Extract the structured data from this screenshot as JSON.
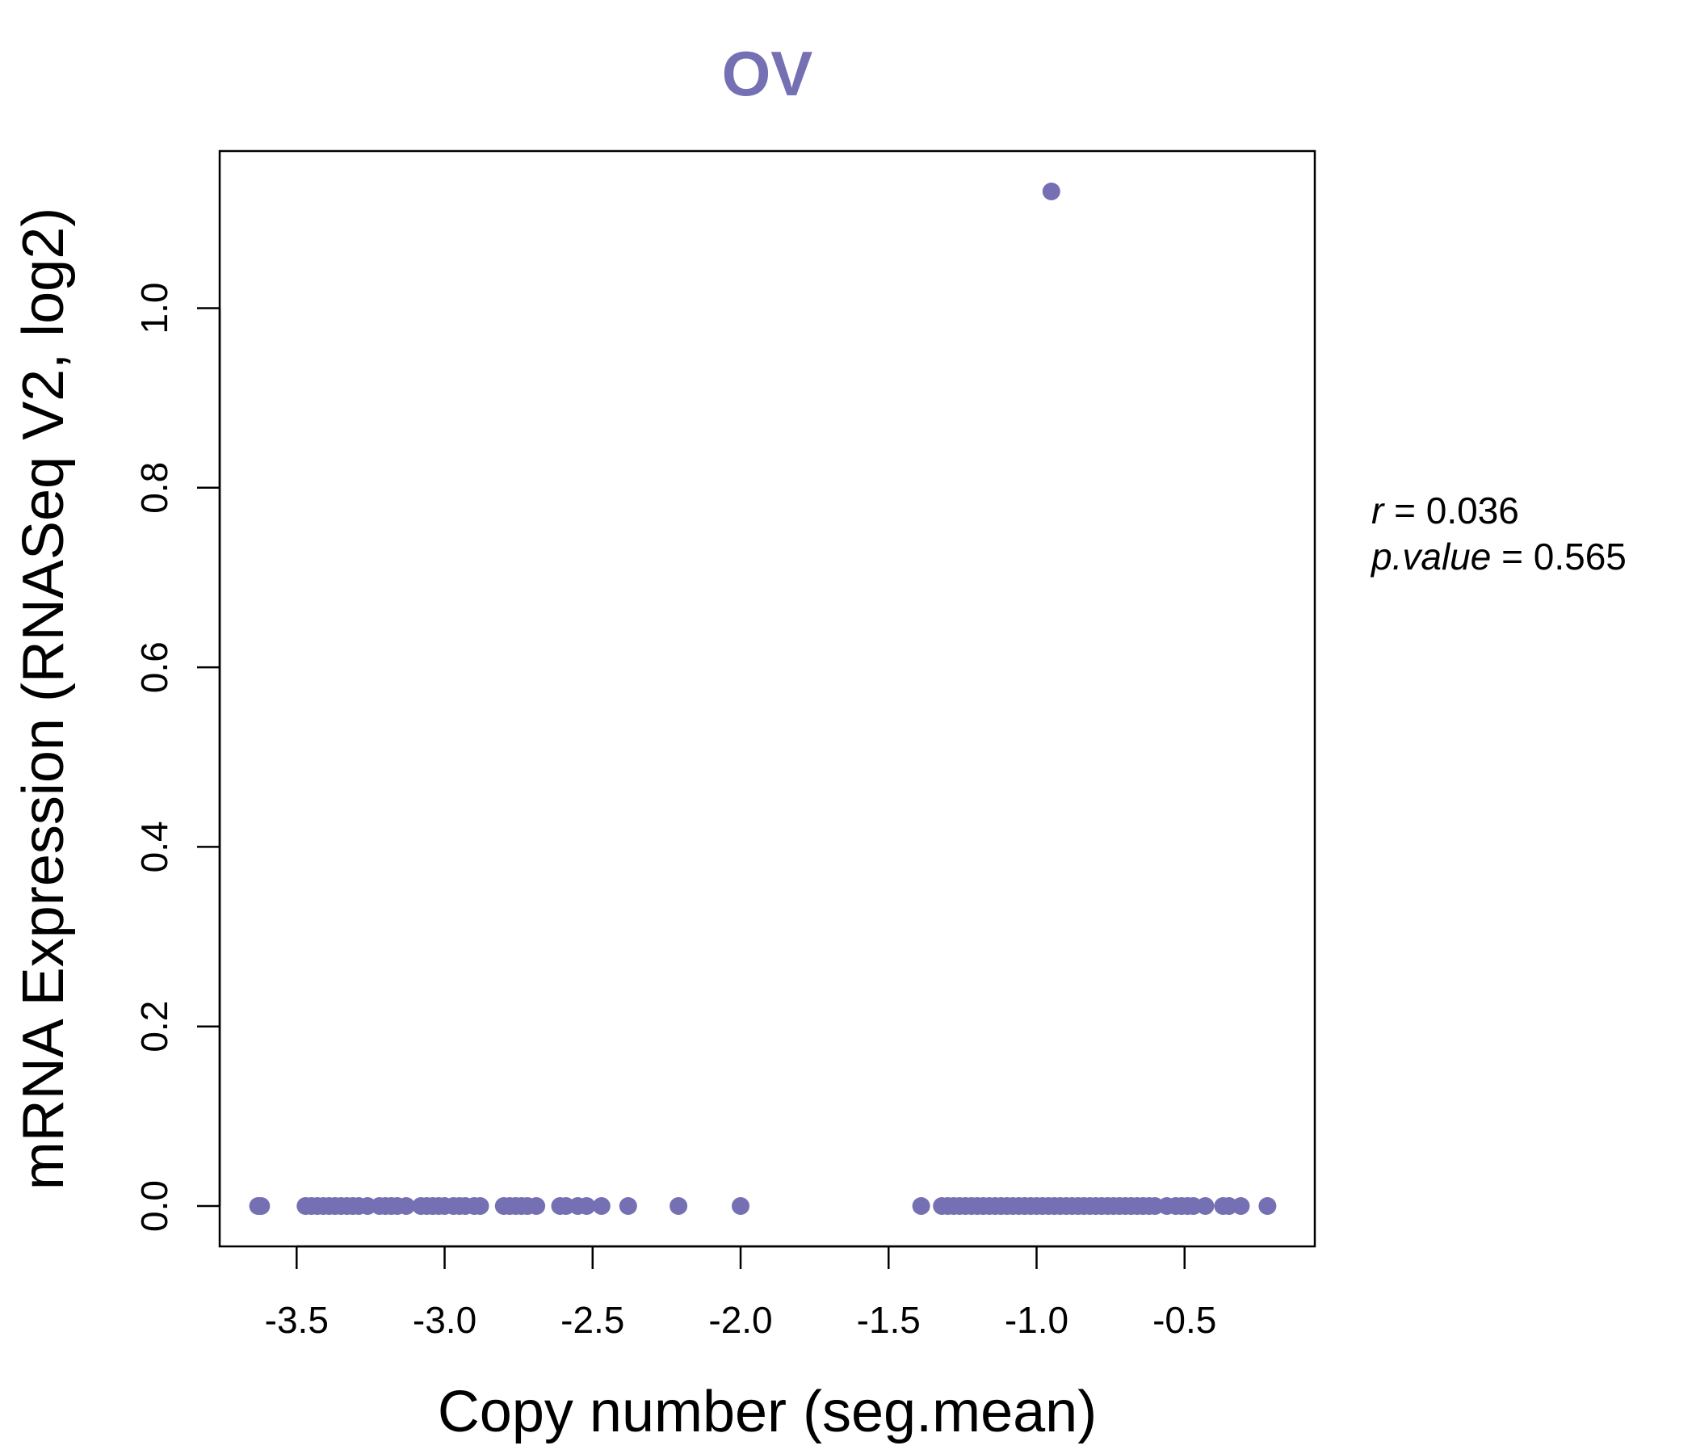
{
  "chart_data": {
    "type": "scatter",
    "title": "OV",
    "xlabel": "Copy number (seg.mean)",
    "ylabel": "mRNA Expression (RNASeq V2, log2)",
    "xlim": [
      -3.76,
      -0.06
    ],
    "ylim": [
      -0.045,
      1.175
    ],
    "x_ticks": [
      -3.5,
      -3.0,
      -2.5,
      -2.0,
      -1.5,
      -1.0,
      -0.5
    ],
    "x_tick_labels": [
      "-3.5",
      "-3.0",
      "-2.5",
      "-2.0",
      "-1.5",
      "-1.0",
      "-0.5"
    ],
    "y_ticks": [
      0.0,
      0.2,
      0.4,
      0.6,
      0.8,
      1.0
    ],
    "y_tick_labels": [
      "0.0",
      "0.2",
      "0.4",
      "0.6",
      "0.8",
      "1.0"
    ],
    "grid": false,
    "point_color": "#7570b3",
    "stats": {
      "r_label": "r",
      "r_value": "0.036",
      "p_label": "p.value",
      "p_value": "0.565"
    },
    "points": [
      {
        "x": -3.63,
        "y": 0
      },
      {
        "x": -3.62,
        "y": 0
      },
      {
        "x": -3.47,
        "y": 0
      },
      {
        "x": -3.45,
        "y": 0
      },
      {
        "x": -3.43,
        "y": 0
      },
      {
        "x": -3.41,
        "y": 0
      },
      {
        "x": -3.39,
        "y": 0
      },
      {
        "x": -3.37,
        "y": 0
      },
      {
        "x": -3.35,
        "y": 0
      },
      {
        "x": -3.33,
        "y": 0
      },
      {
        "x": -3.31,
        "y": 0
      },
      {
        "x": -3.29,
        "y": 0
      },
      {
        "x": -3.26,
        "y": 0
      },
      {
        "x": -3.22,
        "y": 0
      },
      {
        "x": -3.2,
        "y": 0
      },
      {
        "x": -3.18,
        "y": 0
      },
      {
        "x": -3.16,
        "y": 0
      },
      {
        "x": -3.13,
        "y": 0
      },
      {
        "x": -3.08,
        "y": 0
      },
      {
        "x": -3.06,
        "y": 0
      },
      {
        "x": -3.04,
        "y": 0
      },
      {
        "x": -3.02,
        "y": 0
      },
      {
        "x": -3.0,
        "y": 0
      },
      {
        "x": -2.97,
        "y": 0
      },
      {
        "x": -2.95,
        "y": 0
      },
      {
        "x": -2.93,
        "y": 0
      },
      {
        "x": -2.9,
        "y": 0
      },
      {
        "x": -2.88,
        "y": 0
      },
      {
        "x": -2.8,
        "y": 0
      },
      {
        "x": -2.78,
        "y": 0
      },
      {
        "x": -2.76,
        "y": 0
      },
      {
        "x": -2.74,
        "y": 0
      },
      {
        "x": -2.72,
        "y": 0
      },
      {
        "x": -2.69,
        "y": 0
      },
      {
        "x": -2.61,
        "y": 0
      },
      {
        "x": -2.59,
        "y": 0
      },
      {
        "x": -2.55,
        "y": 0
      },
      {
        "x": -2.52,
        "y": 0
      },
      {
        "x": -2.47,
        "y": 0
      },
      {
        "x": -2.38,
        "y": 0
      },
      {
        "x": -2.21,
        "y": 0
      },
      {
        "x": -2.0,
        "y": 0
      },
      {
        "x": -1.39,
        "y": 0
      },
      {
        "x": -1.32,
        "y": 0
      },
      {
        "x": -1.3,
        "y": 0
      },
      {
        "x": -1.28,
        "y": 0
      },
      {
        "x": -1.26,
        "y": 0
      },
      {
        "x": -1.24,
        "y": 0
      },
      {
        "x": -1.22,
        "y": 0
      },
      {
        "x": -1.2,
        "y": 0
      },
      {
        "x": -1.18,
        "y": 0
      },
      {
        "x": -1.16,
        "y": 0
      },
      {
        "x": -1.14,
        "y": 0
      },
      {
        "x": -1.12,
        "y": 0
      },
      {
        "x": -1.1,
        "y": 0
      },
      {
        "x": -1.08,
        "y": 0
      },
      {
        "x": -1.06,
        "y": 0
      },
      {
        "x": -1.04,
        "y": 0
      },
      {
        "x": -1.02,
        "y": 0
      },
      {
        "x": -1.0,
        "y": 0
      },
      {
        "x": -0.98,
        "y": 0
      },
      {
        "x": -0.96,
        "y": 0
      },
      {
        "x": -0.94,
        "y": 0
      },
      {
        "x": -0.92,
        "y": 0
      },
      {
        "x": -0.9,
        "y": 0
      },
      {
        "x": -0.88,
        "y": 0
      },
      {
        "x": -0.86,
        "y": 0
      },
      {
        "x": -0.84,
        "y": 0
      },
      {
        "x": -0.82,
        "y": 0
      },
      {
        "x": -0.8,
        "y": 0
      },
      {
        "x": -0.78,
        "y": 0
      },
      {
        "x": -0.76,
        "y": 0
      },
      {
        "x": -0.74,
        "y": 0
      },
      {
        "x": -0.72,
        "y": 0
      },
      {
        "x": -0.7,
        "y": 0
      },
      {
        "x": -0.68,
        "y": 0
      },
      {
        "x": -0.66,
        "y": 0
      },
      {
        "x": -0.64,
        "y": 0
      },
      {
        "x": -0.62,
        "y": 0
      },
      {
        "x": -0.6,
        "y": 0
      },
      {
        "x": -0.56,
        "y": 0
      },
      {
        "x": -0.53,
        "y": 0
      },
      {
        "x": -0.51,
        "y": 0
      },
      {
        "x": -0.49,
        "y": 0
      },
      {
        "x": -0.47,
        "y": 0
      },
      {
        "x": -0.43,
        "y": 0
      },
      {
        "x": -0.37,
        "y": 0
      },
      {
        "x": -0.35,
        "y": 0
      },
      {
        "x": -0.31,
        "y": 0
      },
      {
        "x": -0.22,
        "y": 0
      },
      {
        "x": -0.95,
        "y": 1.13
      }
    ]
  }
}
